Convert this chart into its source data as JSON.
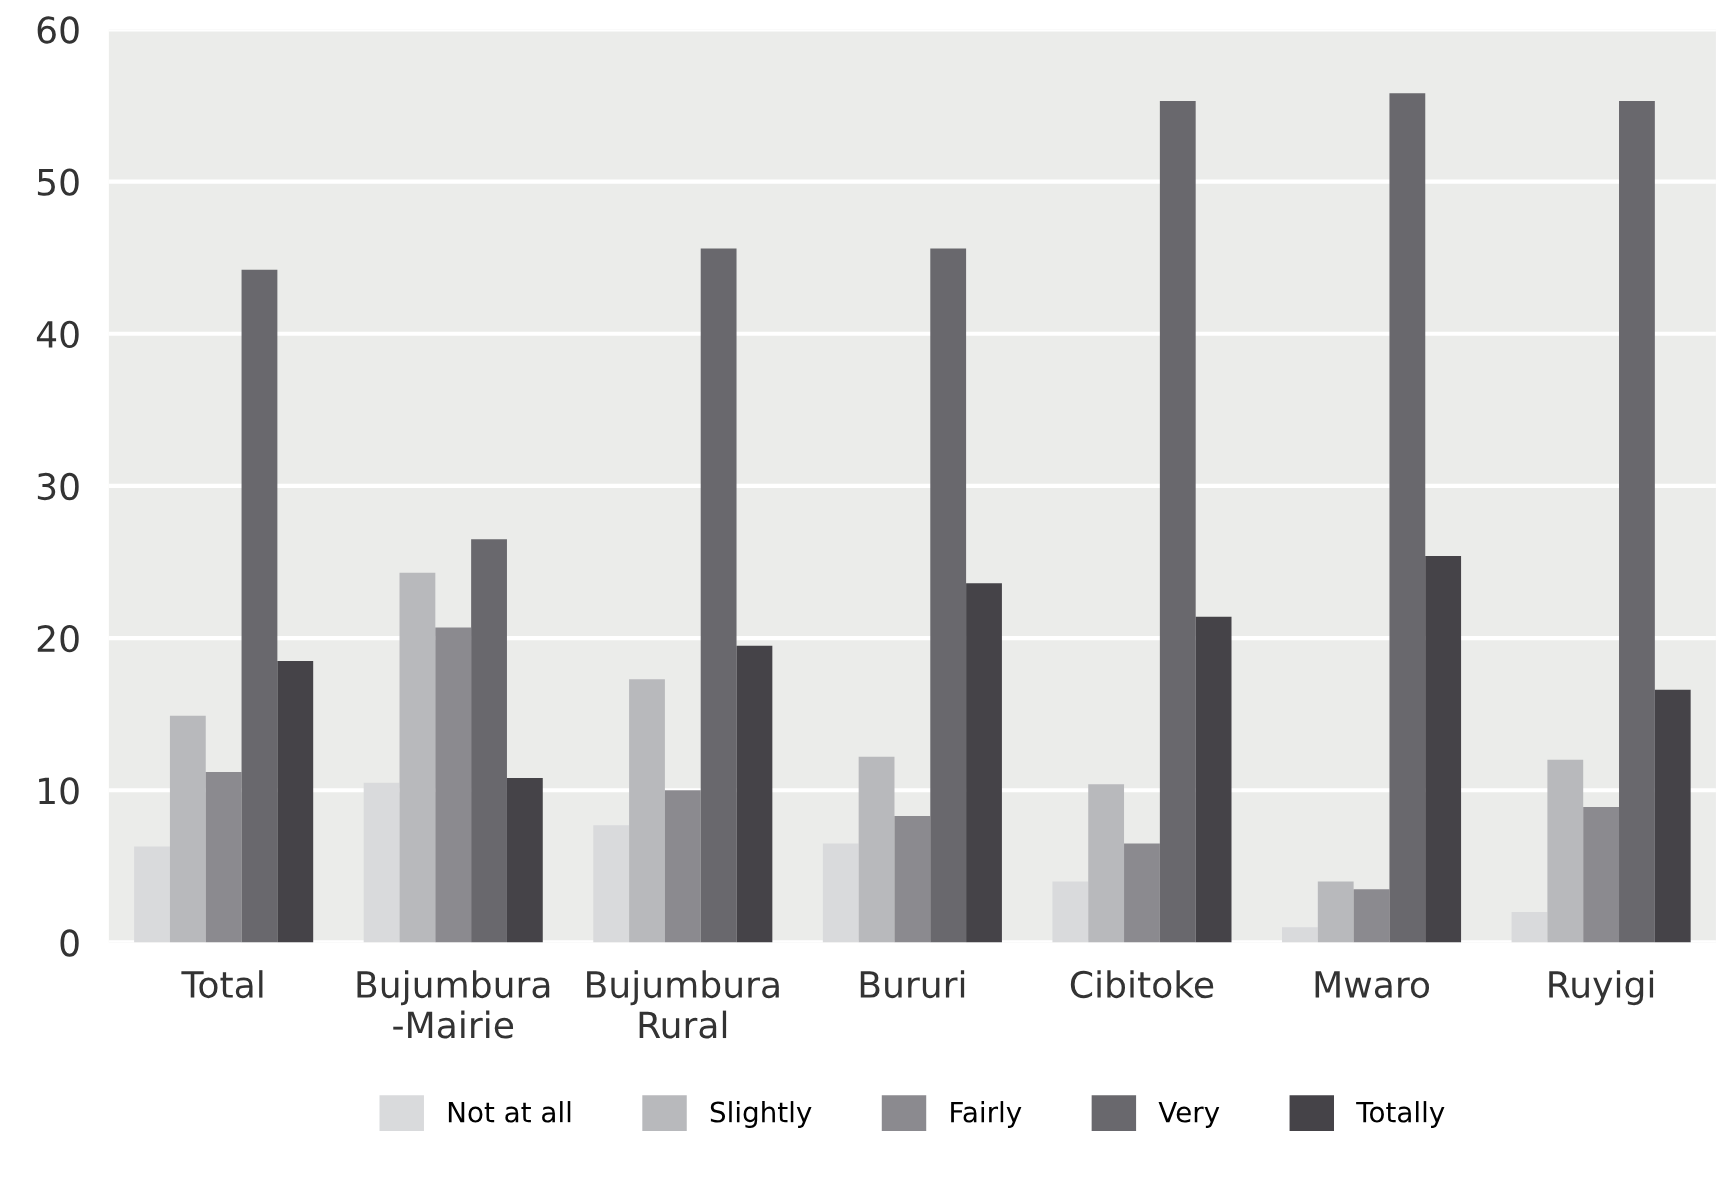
{
  "chart_data": {
    "type": "bar",
    "categories": [
      "Total",
      "Bujumbura\n-Mairie",
      "Bujumbura\nRural",
      "Bururi",
      "Cibitoke",
      "Mwaro",
      "Ruyigi"
    ],
    "series": [
      {
        "name": "Not at all",
        "color": "#d9dadc",
        "values": [
          6.3,
          10.5,
          7.7,
          6.5,
          4,
          1,
          2
        ]
      },
      {
        "name": "Slightly",
        "color": "#b8b9bc",
        "values": [
          14.9,
          24.3,
          17.3,
          12.2,
          10.4,
          4,
          12
        ]
      },
      {
        "name": "Fairly",
        "color": "#8b8a8f",
        "values": [
          11.2,
          20.7,
          10,
          8.3,
          6.5,
          3.5,
          8.9
        ]
      },
      {
        "name": "Very",
        "color": "#69686d",
        "values": [
          44.2,
          26.5,
          45.6,
          45.6,
          55.3,
          55.8,
          55.3
        ]
      },
      {
        "name": "Totally",
        "color": "#454348",
        "values": [
          18.5,
          10.8,
          19.5,
          23.6,
          21.4,
          25.4,
          16.6
        ]
      }
    ],
    "ylim": [
      0,
      60
    ],
    "yticks": [
      0,
      10,
      20,
      30,
      40,
      50,
      60
    ],
    "grid": "y",
    "legend": "bottom"
  }
}
